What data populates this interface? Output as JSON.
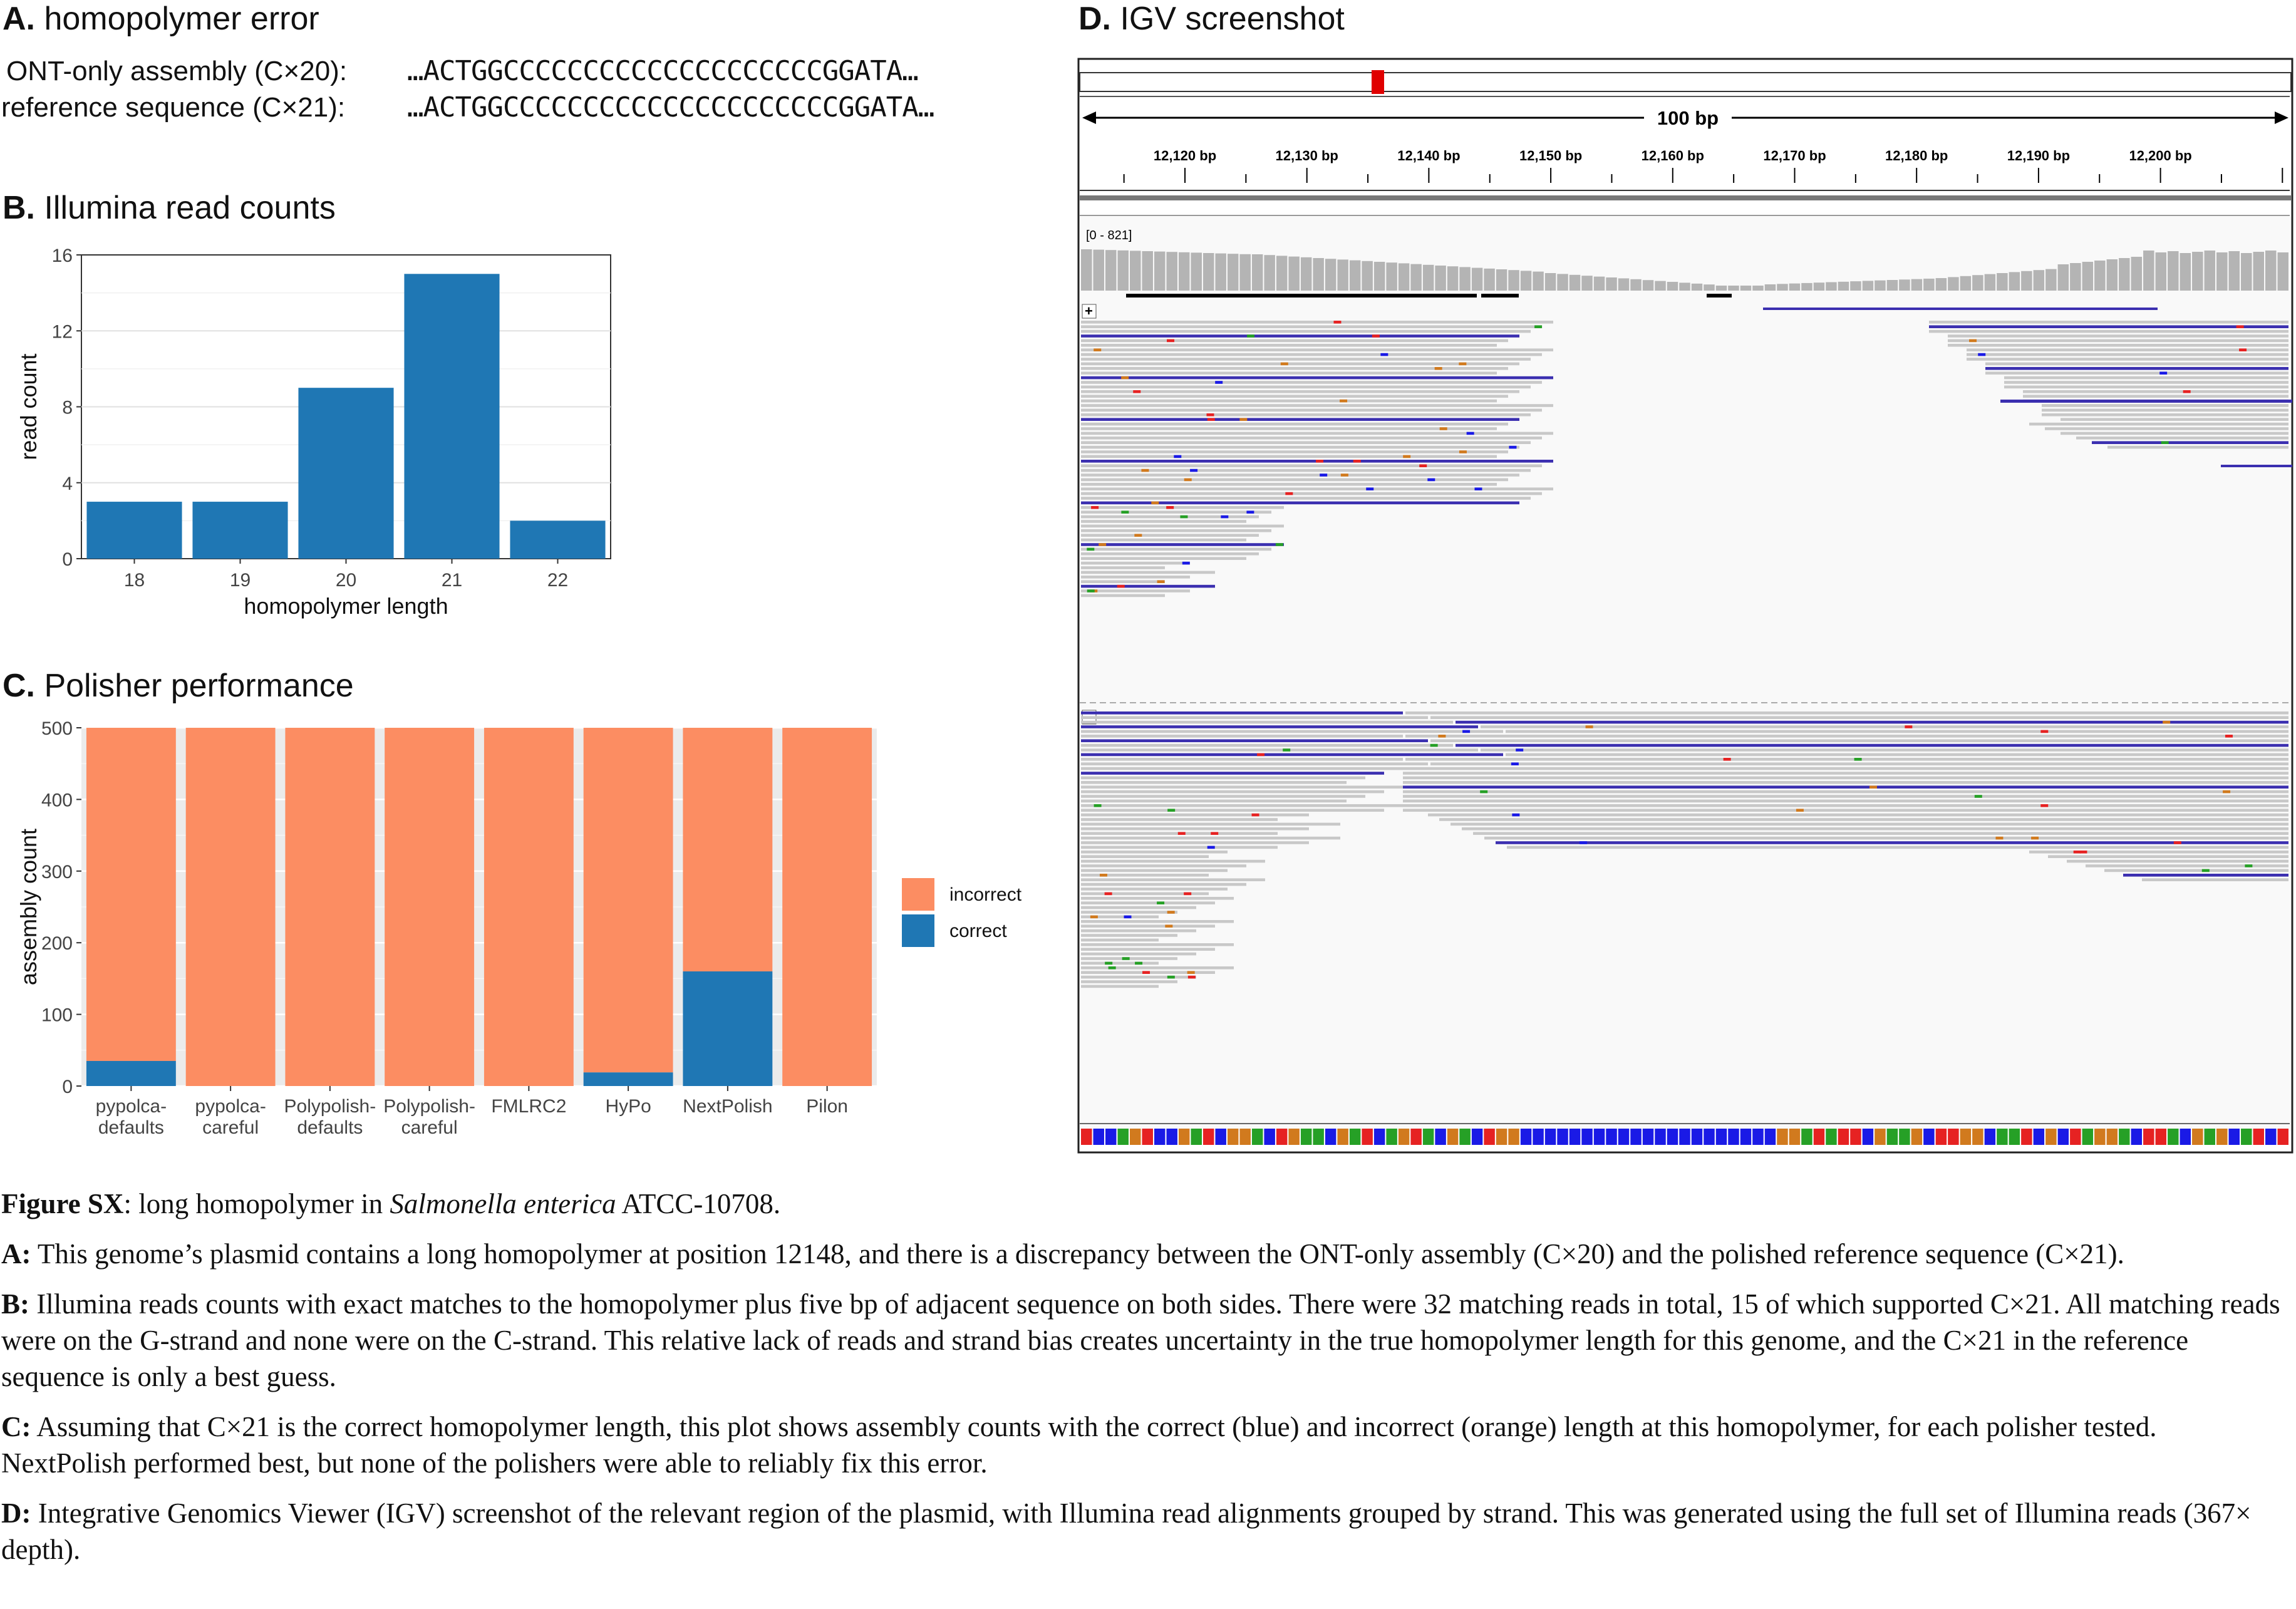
{
  "panel_a": {
    "letter": "A.",
    "title": "homopolymer error",
    "rows": [
      {
        "label": "ONT-only assembly (C×20):",
        "sequence": "…ACTGGCCCCCCCCCCCCCCCCCCCCGGATA…"
      },
      {
        "label": "reference sequence (C×21):",
        "sequence": "…ACTGGCCCCCCCCCCCCCCCCCCCCCGGATA…"
      }
    ]
  },
  "panel_b": {
    "letter": "B.",
    "title": "Illumina read counts"
  },
  "panel_c": {
    "letter": "C.",
    "title": "Polisher performance"
  },
  "panel_d": {
    "letter": "D.",
    "title": "IGV screenshot",
    "span_label": "100 bp",
    "ticks": [
      "12,120 bp",
      "12,130 bp",
      "12,140 bp",
      "12,150 bp",
      "12,160 bp",
      "12,170 bp",
      "12,180 bp",
      "12,190 bp",
      "12,200 bp"
    ],
    "coverage_range": "[0 - 821]",
    "plus_strand": "+",
    "minus_strand": "-",
    "colors": {
      "A": "#26a026",
      "C": "#1a1ae6",
      "G": "#d17a1e",
      "T": "#e62222",
      "insertion": "#3b2fb0",
      "read": "#c8c8c8"
    }
  },
  "chart_data": [
    {
      "type": "bar",
      "title": "Illumina read counts",
      "categories": [
        "18",
        "19",
        "20",
        "21",
        "22"
      ],
      "values": [
        3,
        3,
        9,
        15,
        2
      ],
      "xlabel": "homopolymer length",
      "ylabel": "read count",
      "ylim": [
        0,
        16
      ],
      "yticks": [
        "0",
        "4",
        "8",
        "12",
        "16"
      ],
      "color": "#1f77b4",
      "grid": true
    },
    {
      "type": "bar",
      "stacked": true,
      "title": "Polisher performance",
      "categories": [
        "pypolca-\ndefaults",
        "pypolca-\ncareful",
        "Polypolish-\ndefaults",
        "Polypolish-\ncareful",
        "FMLRC2",
        "HyPo",
        "NextPolish",
        "Pilon"
      ],
      "series": [
        {
          "name": "correct",
          "values": [
            35,
            0,
            0,
            0,
            0,
            19,
            160,
            0
          ],
          "color": "#1f77b4"
        },
        {
          "name": "incorrect",
          "values": [
            465,
            500,
            500,
            500,
            500,
            481,
            340,
            500
          ],
          "color": "#fc8d62"
        }
      ],
      "xlabel": "",
      "ylabel": "assembly count",
      "ylim": [
        0,
        500
      ],
      "yticks": [
        "0",
        "100",
        "200",
        "300",
        "400",
        "500"
      ],
      "legend": "right",
      "legend_entries": [
        "incorrect",
        "correct"
      ],
      "grid": true
    }
  ],
  "caption": {
    "title_bold": "Figure SX",
    "title_rest1": ": long homopolymer in ",
    "title_italic": "Salmonella enterica",
    "title_rest2": " ATCC-10708.",
    "a_label": "A:",
    "a_text": " This genome’s plasmid contains a long homopolymer at position 12148, and there is a discrepancy between the ONT-only assembly (C×20) and the polished reference sequence (C×21).",
    "b_label": "B:",
    "b_text": " Illumina reads counts with exact matches to the homopolymer plus five bp of adjacent sequence on both sides. There were 32 matching reads in total, 15 of which supported C×21. All matching reads were on the G-strand and none were on the C-strand. This relative lack of reads and strand bias creates uncertainty in the true homopolymer length for this genome, and the C×21 in the reference sequence is only a best guess.",
    "c_label": "C:",
    "c_text": " Assuming that C×21 is the correct homopolymer length, this plot shows assembly counts with the correct (blue) and incorrect (orange) length at this homopolymer, for each polisher tested. NextPolish performed best, but none of the polishers were able to reliably fix this error.",
    "d_label": "D:",
    "d_text": " Integrative Genomics Viewer (IGV) screenshot of the relevant region of the plasmid, with Illumina read alignments grouped by strand. This was generated using the full set of Illumina reads (367× depth)."
  }
}
